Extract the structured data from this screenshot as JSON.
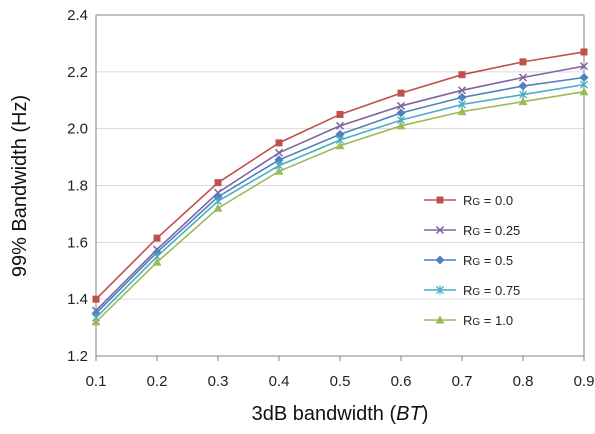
{
  "chart_data": {
    "type": "line",
    "xlabel_main": "3dB bandwidth (",
    "xlabel_italic": "BT",
    "xlabel_end": ")",
    "ylabel": "99% Bandwidth (Hz)",
    "x": [
      0.1,
      0.2,
      0.3,
      0.4,
      0.5,
      0.6,
      0.7,
      0.8,
      0.9
    ],
    "x_tick_labels": [
      "0.1",
      "0.2",
      "0.3",
      "0.4",
      "0.5",
      "0.6",
      "0.7",
      "0.8",
      "0.9"
    ],
    "xlim": [
      0.1,
      0.9
    ],
    "ylim": [
      1.2,
      2.4
    ],
    "y_ticks": [
      1.2,
      1.4,
      1.6,
      1.8,
      2.0,
      2.2,
      2.4
    ],
    "y_tick_labels": [
      "1.2",
      "1.4",
      "1.6",
      "1.8",
      "2.0",
      "2.2",
      "2.4"
    ],
    "grid": "horizontal",
    "legend_position": "right-middle",
    "series": [
      {
        "name": "RG = 0.0",
        "sub": "G",
        "prefix": "R",
        "suffix": " = 0.0",
        "color": "#c0504d",
        "marker": "square",
        "values": [
          1.4,
          1.615,
          1.81,
          1.95,
          2.05,
          2.125,
          2.19,
          2.235,
          2.27
        ]
      },
      {
        "name": "RG = 0.25",
        "sub": "G",
        "prefix": "R",
        "suffix": " = 0.25",
        "color": "#8064a2",
        "marker": "x",
        "values": [
          1.36,
          1.575,
          1.775,
          1.915,
          2.01,
          2.08,
          2.135,
          2.18,
          2.22
        ]
      },
      {
        "name": "RG = 0.5",
        "sub": "G",
        "prefix": "R",
        "suffix": " = 0.5",
        "color": "#4f81bd",
        "marker": "diamond",
        "values": [
          1.35,
          1.565,
          1.76,
          1.89,
          1.98,
          2.055,
          2.11,
          2.15,
          2.18
        ]
      },
      {
        "name": "RG = 0.75",
        "sub": "G",
        "prefix": "R",
        "suffix": " = 0.75",
        "color": "#4bacc6",
        "marker": "asterisk",
        "values": [
          1.335,
          1.55,
          1.745,
          1.87,
          1.96,
          2.03,
          2.085,
          2.12,
          2.155
        ]
      },
      {
        "name": "RG = 1.0",
        "sub": "G",
        "prefix": "R",
        "suffix": " = 1.0",
        "color": "#9bbb59",
        "marker": "triangle",
        "values": [
          1.32,
          1.53,
          1.72,
          1.85,
          1.94,
          2.01,
          2.06,
          2.095,
          2.13
        ]
      }
    ]
  }
}
